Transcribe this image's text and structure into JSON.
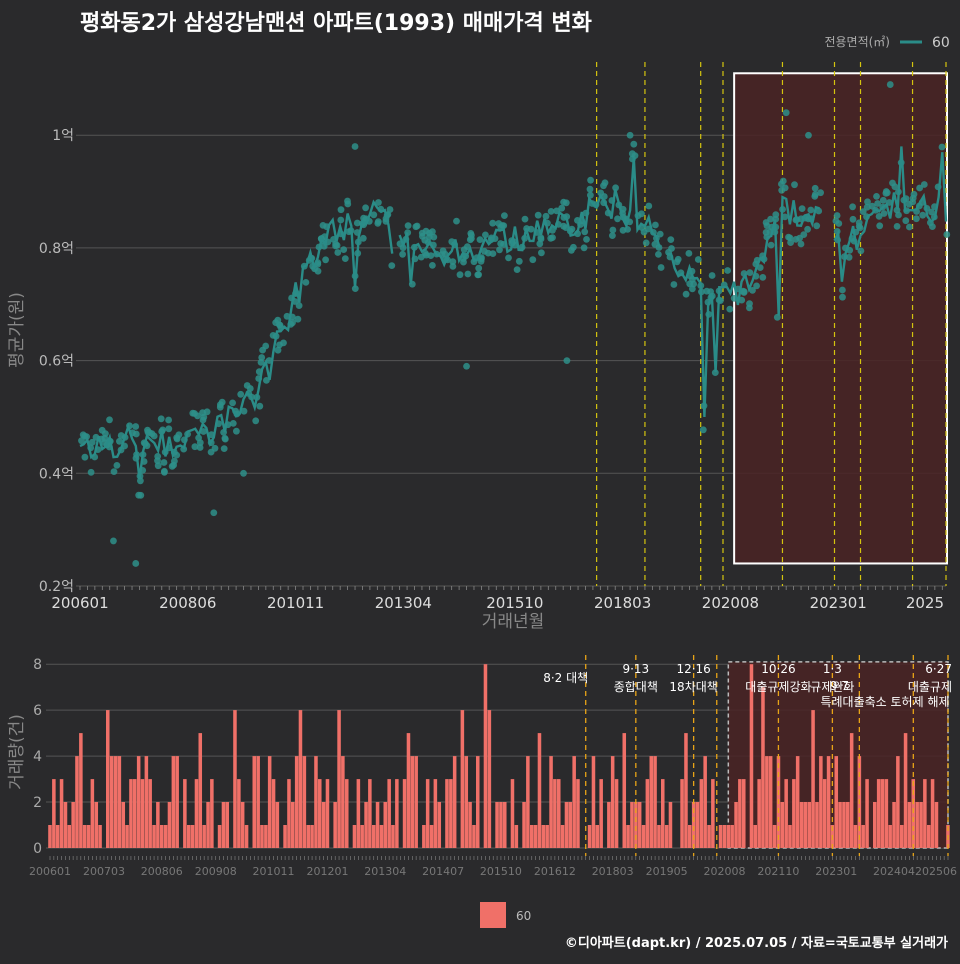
{
  "title": "평화동2가 삼성강남맨션 아파트(1993) 매매가격 변화",
  "footer": "©디아파트(dapt.kr) / 2025.07.05 / 자료=국토교통부 실거래가",
  "colors": {
    "background": "#2a2a2c",
    "price_line": "#2a8c88",
    "price_point": "#2e8f8a",
    "volume_bar": "#f07068",
    "policy_line": "#d4c40f",
    "policy_line_bottom": "#e8a417",
    "highlight_fill": "#4a2324",
    "highlight_border": "#ffffff",
    "grid": "#555555"
  },
  "chart_data": [
    {
      "type": "line",
      "name": "price",
      "ylabel": "평균가(원)",
      "xlabel": "거래년월",
      "legend": {
        "title": "전용면적(㎡)",
        "entries": [
          "60"
        ],
        "position": "top-right"
      },
      "x_range": [
        "2006-01",
        "2025-06"
      ],
      "ylim": [
        0.2,
        1.13
      ],
      "yticks": [
        0.2,
        0.4,
        0.6,
        0.8,
        1.0
      ],
      "ytick_labels": [
        "0.2억",
        "0.4억",
        "0.6억",
        "0.8억",
        "1억"
      ],
      "xtick_labels": [
        "200601",
        "200806",
        "201011",
        "201304",
        "201510",
        "201803",
        "202008",
        "202301",
        "2025"
      ],
      "xtick_dates": [
        "2006-01",
        "2008-06",
        "2010-11",
        "2013-04",
        "2015-10",
        "2018-03",
        "2020-08",
        "2023-01",
        "2025-06"
      ],
      "policy_lines": [
        "2017-08",
        "2018-09",
        "2019-12",
        "2020-06",
        "2021-10",
        "2022-12",
        "2023-07",
        "2024-09",
        "2025-06"
      ],
      "highlight_range": [
        "2020-09",
        "2025-06"
      ],
      "highlight_y": [
        0.24,
        1.11
      ],
      "unit": "억원",
      "series": [
        {
          "name": "60",
          "anchors": [
            [
              "2006-01",
              0.44
            ],
            [
              "2007-01",
              0.46
            ],
            [
              "2007-06",
              0.45
            ],
            [
              "2008-01",
              0.45
            ],
            [
              "2008-06",
              0.47
            ],
            [
              "2009-01",
              0.48
            ],
            [
              "2009-06",
              0.5
            ],
            [
              "2009-12",
              0.53
            ],
            [
              "2010-04",
              0.6
            ],
            [
              "2010-08",
              0.68
            ],
            [
              "2011-01",
              0.73
            ],
            [
              "2011-06",
              0.79
            ],
            [
              "2011-10",
              0.83
            ],
            [
              "2012-02",
              0.87
            ],
            [
              "2012-06",
              0.86
            ],
            [
              "2012-08",
              0.85
            ],
            [
              "2013-01",
              0.82
            ],
            [
              "2013-06",
              0.78
            ],
            [
              "2014-06",
              0.8
            ],
            [
              "2015-06",
              0.81
            ],
            [
              "2016-06",
              0.83
            ],
            [
              "2017-06",
              0.86
            ],
            [
              "2018-01",
              0.88
            ],
            [
              "2018-10",
              0.83
            ],
            [
              "2019-06",
              0.77
            ],
            [
              "2019-10",
              0.73
            ],
            [
              "2020-02",
              0.7
            ],
            [
              "2020-08",
              0.71
            ],
            [
              "2021-03",
              0.74
            ],
            [
              "2021-10",
              0.87
            ],
            [
              "2022-06",
              0.86
            ],
            [
              "2023-03",
              0.8
            ],
            [
              "2023-09",
              0.84
            ],
            [
              "2024-06",
              0.88
            ],
            [
              "2025-06",
              0.86
            ]
          ],
          "spikes": [
            [
              "2007-05",
              0.39
            ],
            [
              "2012-03",
              0.73
            ],
            [
              "2018-06",
              0.96
            ],
            [
              "2019-06",
              0.75
            ],
            [
              "2020-01",
              0.5
            ],
            [
              "2020-04",
              0.58
            ],
            [
              "2021-09",
              0.68
            ],
            [
              "2023-02",
              0.74
            ],
            [
              "2024-06",
              0.98
            ],
            [
              "2025-05",
              0.97
            ]
          ],
          "outliers": [
            [
              "2006-10",
              0.28
            ],
            [
              "2007-04",
              0.24
            ],
            [
              "2009-01",
              0.33
            ],
            [
              "2012-03",
              0.98
            ],
            [
              "2014-09",
              0.59
            ],
            [
              "2016-12",
              0.6
            ],
            [
              "2018-05",
              1.0
            ],
            [
              "2021-11",
              1.04
            ],
            [
              "2022-05",
              1.0
            ],
            [
              "2024-03",
              1.09
            ],
            [
              "2009-09",
              0.4
            ]
          ]
        }
      ]
    },
    {
      "type": "bar",
      "name": "volume",
      "ylabel": "거래량(건)",
      "ylim": [
        0,
        8.4
      ],
      "yticks": [
        0,
        2,
        4,
        6,
        8
      ],
      "ytick_labels": [
        "0",
        "2",
        "4",
        "6",
        "8"
      ],
      "xtick_labels": [
        "200601",
        "200703",
        "200806",
        "200908",
        "201011",
        "201201",
        "201304",
        "201407",
        "201510",
        "201612",
        "201803",
        "201905",
        "202008",
        "202110",
        "202301",
        "202404",
        "202506"
      ],
      "xtick_dates": [
        "2006-01",
        "2007-03",
        "2008-06",
        "2009-08",
        "2010-11",
        "2012-01",
        "2013-04",
        "2014-07",
        "2015-10",
        "2016-12",
        "2018-03",
        "2019-05",
        "2020-08",
        "2021-10",
        "2023-01",
        "2024-04",
        "2025-06"
      ],
      "legend": {
        "entries": [
          "60"
        ],
        "position": "bottom"
      },
      "x_range": [
        "2006-01",
        "2025-06"
      ],
      "highlight_range": [
        "2020-09",
        "2025-06"
      ],
      "policy_lines": [
        "2017-08",
        "2018-09",
        "2019-12",
        "2020-06",
        "2021-10",
        "2022-12",
        "2023-07",
        "2024-09",
        "2025-06"
      ],
      "peaks": [
        [
          "2010-01",
          6
        ],
        [
          "2015-06",
          8
        ],
        [
          "2006-09",
          5
        ],
        [
          "2007-04",
          6
        ],
        [
          "2009-04",
          5
        ],
        [
          "2011-06",
          6
        ],
        [
          "2012-04",
          6
        ],
        [
          "2013-10",
          5
        ],
        [
          "2014-12",
          6
        ],
        [
          "2015-01",
          4
        ],
        [
          "2015-07",
          6
        ],
        [
          "2016-08",
          5
        ],
        [
          "2018-06",
          5
        ],
        [
          "2019-10",
          5
        ],
        [
          "2021-03",
          8
        ],
        [
          "2021-06",
          7
        ],
        [
          "2022-07",
          6
        ],
        [
          "2023-05",
          5
        ],
        [
          "2024-07",
          5
        ],
        [
          "2025-02",
          3
        ]
      ]
    }
  ],
  "annotations": [
    {
      "date": "2017-08",
      "line1": "8·2 대책",
      "line2": ""
    },
    {
      "date": "2018-09",
      "line1": "9·13",
      "line2": "종합대책"
    },
    {
      "date": "2019-12",
      "line1": "12·16",
      "line2": "18차대책"
    },
    {
      "date": "2021-10",
      "line1": "10·26",
      "line2": "대출규제강화"
    },
    {
      "date": "2022-12",
      "line1": "1·3",
      "line2": "규제완화"
    },
    {
      "date": "2023-07",
      "line1": "",
      "line2": "9·7"
    },
    {
      "date": "2023-07",
      "line1": "",
      "line2": "특례대출축소 토허제 해제"
    },
    {
      "date": "2025-06",
      "line1": "6·27",
      "line2": "대출규제"
    }
  ]
}
